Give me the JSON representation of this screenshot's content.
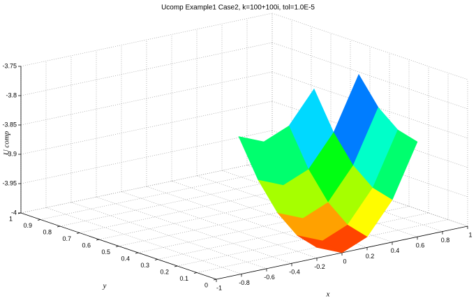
{
  "chart_data": {
    "type": "surface",
    "title": "Ucomp Example1 Case2, k=100+100i, tol=1.0E-5",
    "xlabel": "x",
    "ylabel": "y",
    "zlabel": "U comp",
    "x": [
      -0.2,
      0,
      0.2,
      0.4,
      0.6
    ],
    "y": [
      0,
      0.1,
      0.2,
      0.3,
      0.4
    ],
    "z": [
      [
        -3.982,
        -4,
        -3.982,
        -3.928,
        -3.838
      ],
      [
        -3.973,
        -3.991,
        -3.973,
        -3.919,
        -3.829
      ],
      [
        -3.946,
        -3.964,
        -3.946,
        -3.892,
        -3.802
      ],
      [
        -3.901,
        -3.919,
        -3.901,
        -3.847,
        -3.757
      ],
      [
        -3.838,
        -3.856,
        -3.838,
        -3.784,
        null
      ]
    ],
    "xlim": [
      -1,
      1
    ],
    "xticks": [
      -1,
      -0.8,
      -0.6,
      -0.4,
      -0.2,
      0,
      0.2,
      0.4,
      0.6,
      0.8,
      1
    ],
    "ylim": [
      0,
      1
    ],
    "yticks": [
      0,
      0.1,
      0.2,
      0.3,
      0.4,
      0.5,
      0.6,
      0.7,
      0.8,
      0.9,
      1
    ],
    "zlim": [
      -4,
      -3.75
    ],
    "zticks": [
      -4,
      -3.95,
      -3.9,
      -3.85,
      -3.8,
      -3.75
    ],
    "grid": true,
    "colormap": "hsv"
  }
}
